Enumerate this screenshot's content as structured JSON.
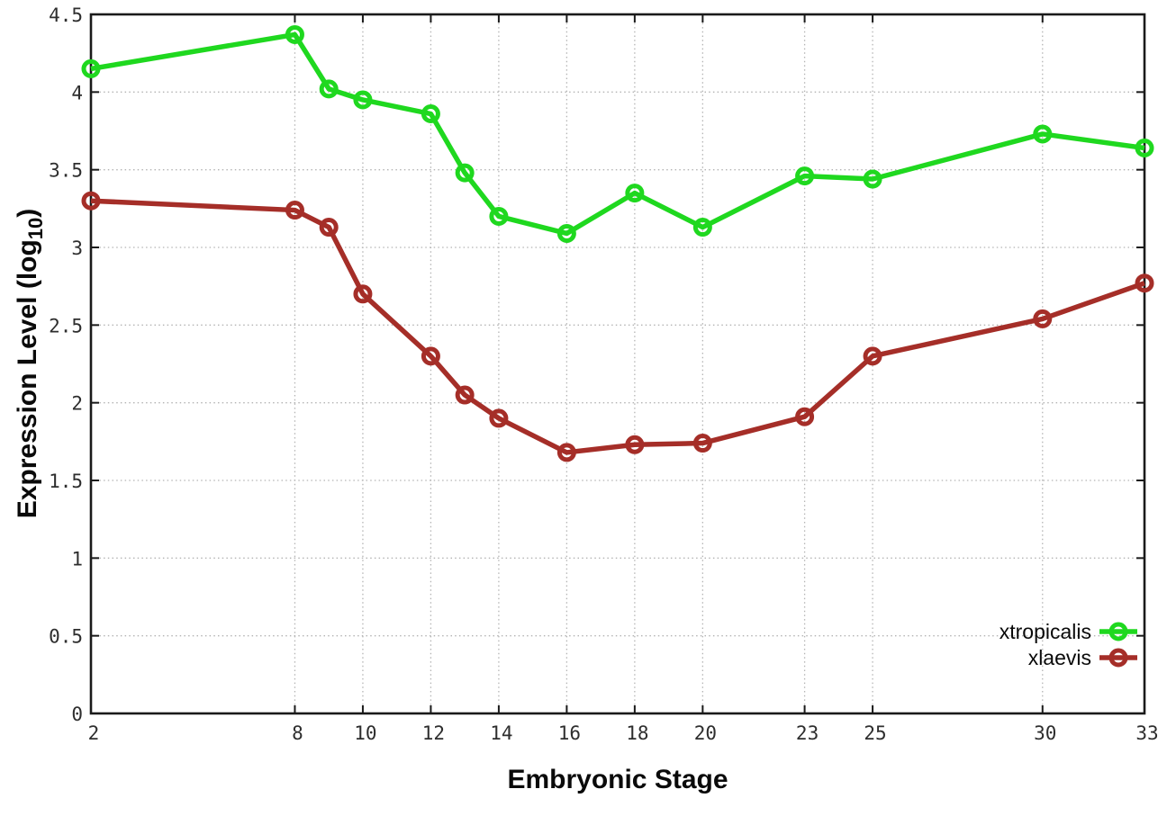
{
  "chart_data": {
    "type": "line",
    "title": "",
    "xlabel": "Embryonic Stage",
    "ylabel": "Expression Level (log10)",
    "ylabel_parts": {
      "pre": "Expression Level (log",
      "sub": "10",
      "post": ")"
    },
    "xlim": [
      2,
      33
    ],
    "ylim": [
      0,
      4.5
    ],
    "x_ticks": [
      2,
      8,
      10,
      12,
      14,
      16,
      18,
      20,
      23,
      25,
      30,
      33
    ],
    "x_tick_labels": [
      "2",
      "8",
      "10",
      "12",
      "14",
      "16",
      "18",
      "20",
      "23",
      "25",
      "30",
      "33"
    ],
    "y_ticks": [
      0,
      0.5,
      1,
      1.5,
      2,
      2.5,
      3,
      3.5,
      4,
      4.5
    ],
    "y_tick_labels": [
      "0",
      "0.5",
      "1",
      "1.5",
      "2",
      "2.5",
      "3",
      "3.5",
      "4",
      "4.5"
    ],
    "grid": true,
    "legend_position": "inside-bottom-right",
    "x": [
      2,
      8,
      9,
      10,
      12,
      13,
      14,
      16,
      18,
      20,
      23,
      25,
      30,
      33
    ],
    "series": [
      {
        "name": "xtropicalis",
        "color": "#1fd81f",
        "values": [
          4.15,
          4.37,
          4.02,
          3.95,
          3.86,
          3.48,
          3.2,
          3.09,
          3.35,
          3.13,
          3.46,
          3.44,
          3.73,
          3.64
        ]
      },
      {
        "name": "xlaevis",
        "color": "#a52e28",
        "values": [
          3.3,
          3.24,
          3.13,
          2.7,
          2.3,
          2.05,
          1.9,
          1.68,
          1.73,
          1.74,
          1.91,
          2.3,
          2.54,
          2.77
        ]
      }
    ]
  },
  "style": {
    "grid_color": "#b4b4b4",
    "border_color": "#1a1a1a",
    "tick_label_color": "#2e2e2e"
  }
}
